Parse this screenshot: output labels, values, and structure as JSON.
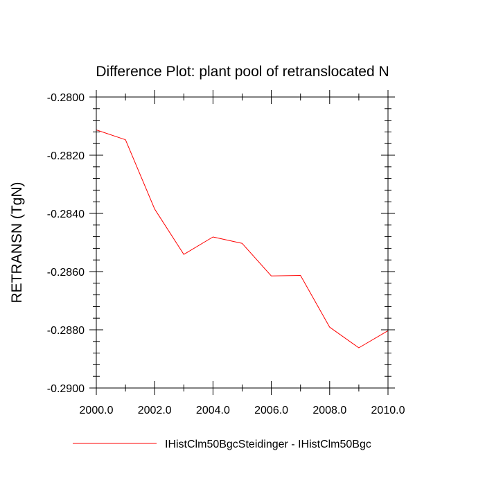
{
  "chart_data": {
    "type": "line",
    "title": "Difference Plot: plant pool of retranslocated N",
    "xlabel": "",
    "ylabel": "RETRANSN  (TgN)",
    "xlim": [
      2000,
      2010
    ],
    "ylim": [
      -0.29,
      -0.28
    ],
    "x_ticks": [
      2000,
      2002,
      2004,
      2006,
      2008,
      2010
    ],
    "x_tick_labels": [
      "2000.0",
      "2002.0",
      "2004.0",
      "2006.0",
      "2008.0",
      "2010.0"
    ],
    "y_ticks": [
      -0.28,
      -0.282,
      -0.284,
      -0.286,
      -0.288,
      -0.29
    ],
    "y_tick_labels": [
      "-0.2800",
      "-0.2820",
      "-0.2840",
      "-0.2860",
      "-0.2880",
      "-0.2900"
    ],
    "grid": false,
    "legend_position": "bottom",
    "series": [
      {
        "name": "IHistClm50BgcSteidinger - IHistClm50Bgc",
        "color": "#ff0000",
        "x": [
          2000,
          2001,
          2002,
          2003,
          2004,
          2005,
          2006,
          2007,
          2008,
          2009,
          2010
        ],
        "values": [
          -0.28113,
          -0.28147,
          -0.28385,
          -0.28541,
          -0.28481,
          -0.28503,
          -0.28615,
          -0.28613,
          -0.28791,
          -0.28862,
          -0.28803
        ]
      }
    ]
  }
}
